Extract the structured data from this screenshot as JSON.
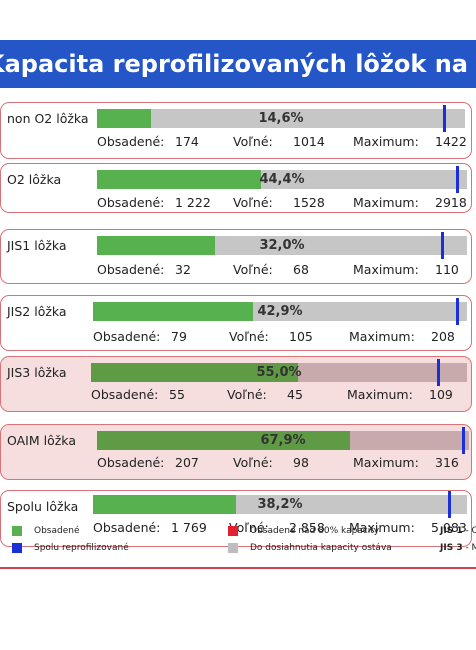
{
  "header": {
    "title": "Kapacita reprofilizovaných lôžok na Slovensku"
  },
  "stat_labels": {
    "occupied": "Obsadené:",
    "free": "Voľné:",
    "maximum": "Maximum:"
  },
  "rows": [
    {
      "label": "non O2 lôžka",
      "percent_text": "14,6%",
      "percent": 14.6,
      "max_marker": 0.94,
      "occupied": "174",
      "free": "1014",
      "maximum": "1422",
      "alert": false
    },
    {
      "label": "O2 lôžka",
      "percent_text": "44,4%",
      "percent": 44.4,
      "max_marker": 0.97,
      "occupied": "1 222",
      "free": "1528",
      "maximum": "2918",
      "alert": false
    },
    {
      "label": "JIS1 lôžka",
      "percent_text": "32,0%",
      "percent": 32.0,
      "max_marker": 0.93,
      "occupied": "32",
      "free": "68",
      "maximum": "110",
      "alert": false
    },
    {
      "label": "JIS2 lôžka",
      "percent_text": "42,9%",
      "percent": 42.9,
      "max_marker": 0.97,
      "occupied": "79",
      "free": "105",
      "maximum": "208",
      "alert": false
    },
    {
      "label": "JIS3 lôžka",
      "percent_text": "55,0%",
      "percent": 55.0,
      "max_marker": 0.92,
      "occupied": "55",
      "free": "45",
      "maximum": "109",
      "alert": true
    },
    {
      "label": "OAIM lôžka",
      "percent_text": "67,9%",
      "percent": 67.9,
      "max_marker": 0.98,
      "occupied": "207",
      "free": "98",
      "maximum": "316",
      "alert": true
    },
    {
      "label": "Spolu lôžka",
      "percent_text": "38,2%",
      "percent": 38.2,
      "max_marker": 0.95,
      "occupied": "1 769",
      "free": "2 858",
      "maximum": "5 083",
      "alert": false
    }
  ],
  "legend": {
    "occupied": "Obsadené",
    "over80": "Obsadené nad 80% kapacity",
    "reprofiled": "Spolu reprofilizované",
    "remaining": "Do dosiahnutia kapacity ostáva",
    "jis1": "JIS 1",
    "jis1_rest": " - C",
    "jis3": "JIS 3",
    "jis3_rest": " - M"
  },
  "colors": {
    "header": "#2456c8",
    "occupied": "#57b14f",
    "over80": "#e0212f",
    "reprofiled": "#1a2fd8",
    "remaining": "#bdbdbd"
  }
}
